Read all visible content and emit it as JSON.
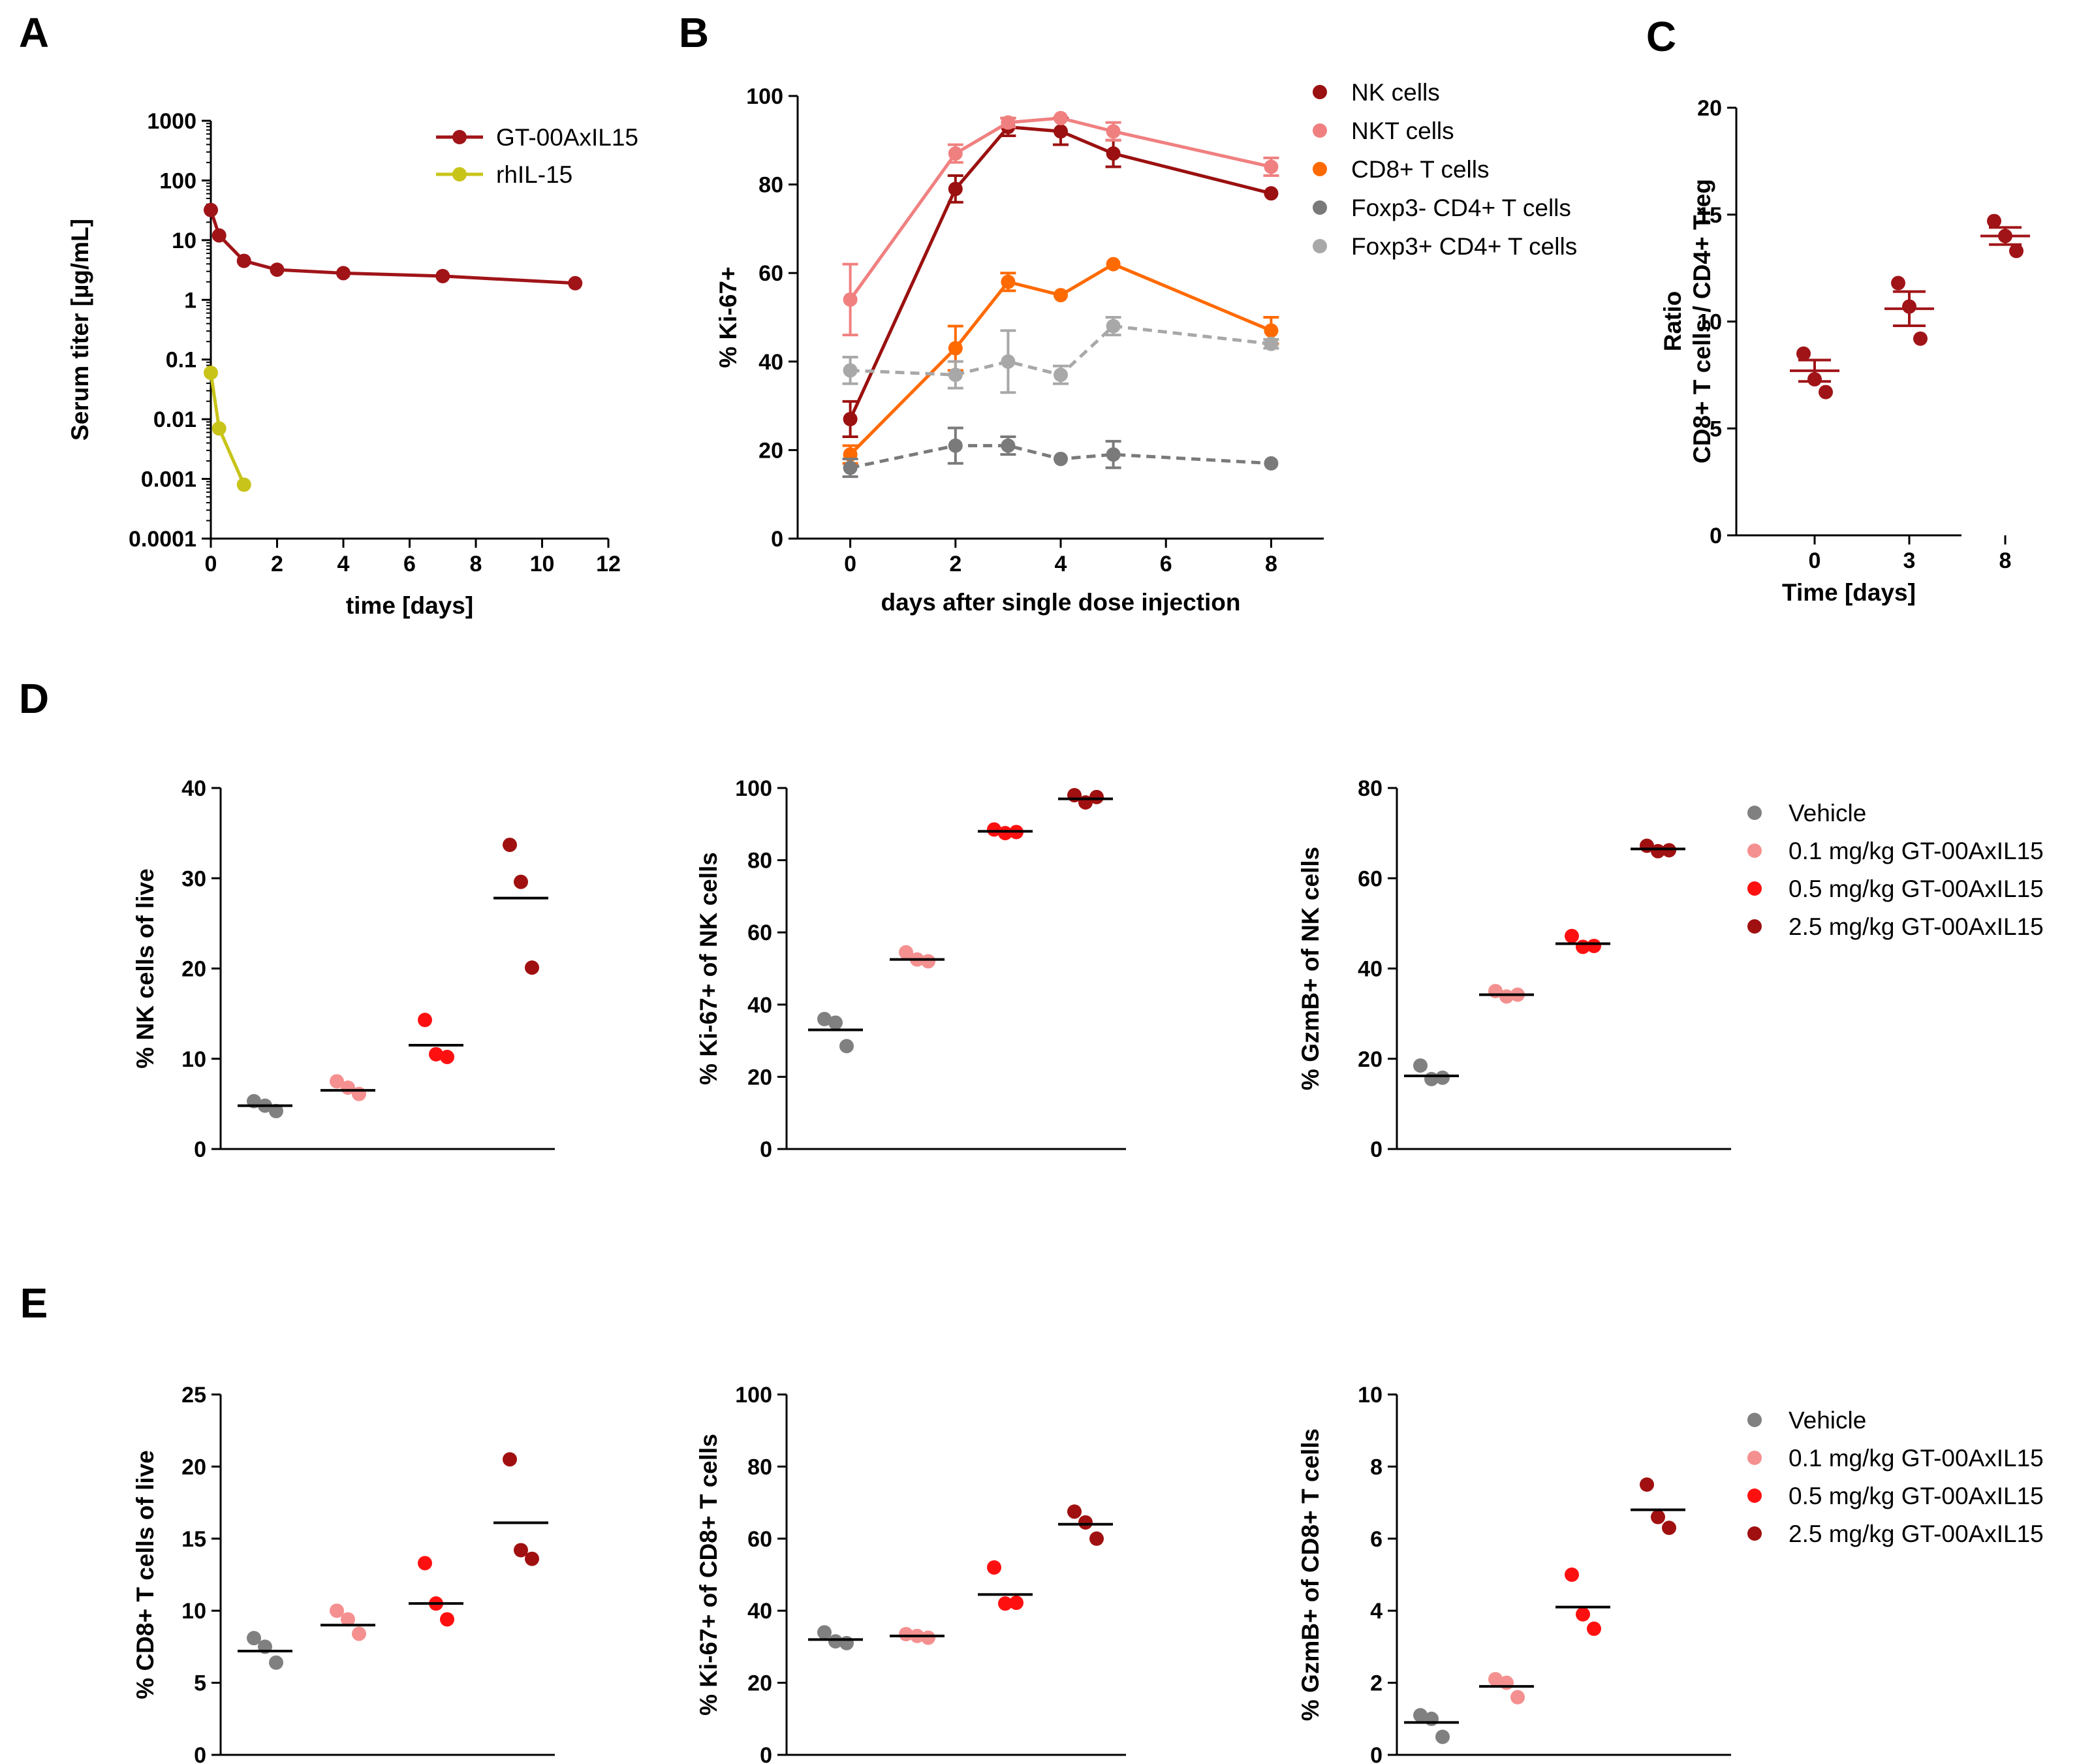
{
  "colors": {
    "nk": "#9b1010",
    "nkt": "#f08080",
    "cd8": "#ff6a00",
    "foxp3neg": "#7a7a7a",
    "foxp3pos": "#a8a8a8",
    "gt": "#a01418",
    "rhil15": "#c8c41a",
    "vehicle": "#808080",
    "dose01": "#f59090",
    "dose05": "#ff1010",
    "dose25": "#a01010"
  },
  "chart_data": [
    {
      "panel": "A",
      "type": "line",
      "yscale": "log",
      "xlabel": "time [days]",
      "ylabel": "Serum titer [µg/mL]",
      "xlim": [
        0,
        12
      ],
      "ylim": [
        0.0001,
        1000
      ],
      "xticks": [
        "0",
        "2",
        "4",
        "6",
        "8",
        "10",
        "12"
      ],
      "yticks": [
        "0.0001",
        "0.001",
        "0.01",
        "0.1",
        "1",
        "10",
        "100",
        "1000"
      ],
      "series": [
        {
          "name": "GT-00AxIL15",
          "color": "gt",
          "x": [
            0,
            0.25,
            1,
            2,
            4,
            7,
            11
          ],
          "y": [
            32,
            12,
            4.5,
            3.2,
            2.8,
            2.5,
            1.9
          ]
        },
        {
          "name": "rhIL-15",
          "color": "rhil15",
          "x": [
            0,
            0.25,
            1
          ],
          "y": [
            0.06,
            0.007,
            0.0008
          ]
        }
      ]
    },
    {
      "panel": "B",
      "type": "line",
      "xlabel": "days after single dose injection",
      "ylabel": "% Ki-67+",
      "xlim": [
        -1,
        9
      ],
      "ylim": [
        0,
        100
      ],
      "xticks": [
        "0",
        "2",
        "4",
        "6",
        "8"
      ],
      "yticks": [
        "0",
        "20",
        "40",
        "60",
        "80",
        "100"
      ],
      "x": [
        0,
        2,
        3,
        4,
        5,
        8
      ],
      "series": [
        {
          "name": "NK cells",
          "color": "nk",
          "dashed": false,
          "y": [
            27,
            79,
            93,
            92,
            87,
            78
          ],
          "err": [
            4,
            3,
            2,
            3,
            3,
            0
          ]
        },
        {
          "name": "NKT cells",
          "color": "nkt",
          "dashed": false,
          "y": [
            54,
            87,
            94,
            95,
            92,
            84
          ],
          "err": [
            8,
            2,
            1,
            0,
            2,
            2
          ]
        },
        {
          "name": "CD8+ T cells",
          "color": "cd8",
          "dashed": false,
          "y": [
            19,
            43,
            58,
            55,
            62,
            47
          ],
          "err": [
            2,
            5,
            2,
            0,
            0,
            3
          ]
        },
        {
          "name": "Foxp3- CD4+ T cells",
          "color": "foxp3neg",
          "dashed": true,
          "y": [
            16,
            21,
            21,
            18,
            19,
            17
          ],
          "err": [
            2,
            4,
            2,
            0,
            3,
            0
          ]
        },
        {
          "name": "Foxp3+ CD4+ T cells",
          "color": "foxp3pos",
          "dashed": true,
          "y": [
            38,
            37,
            40,
            37,
            48,
            44
          ],
          "err": [
            3,
            3,
            7,
            2,
            2,
            1
          ]
        }
      ]
    },
    {
      "panel": "C",
      "type": "scatter",
      "xlabel": "Time [days]",
      "ylabel": [
        "Ratio",
        "CD8+ T cells / CD4+ Treg"
      ],
      "ylim": [
        0,
        20
      ],
      "categories": [
        "0",
        "3",
        "8"
      ],
      "yticks": [
        "0",
        "5",
        "10",
        "15",
        "20"
      ],
      "points": [
        [
          8.5,
          7.3,
          6.7
        ],
        [
          11.8,
          10.7,
          9.2
        ],
        [
          14.7,
          14.0,
          13.3
        ]
      ],
      "means": [
        7.7,
        10.6,
        14.0
      ],
      "sem": [
        0.5,
        0.8,
        0.4
      ],
      "color": "gt"
    },
    {
      "panel": "D1",
      "type": "scatter",
      "ylabel": "% NK cells of live",
      "ylim": [
        0,
        40
      ],
      "yticks": [
        "0",
        "10",
        "20",
        "30",
        "40"
      ],
      "groups": [
        "Vehicle",
        "0.1 mg/kg GT-00AxIL15",
        "0.5 mg/kg GT-00AxIL15",
        "2.5 mg/kg GT-00AxIL15"
      ],
      "points": [
        [
          5.3,
          4.8,
          4.2
        ],
        [
          7.5,
          6.8,
          6.1
        ],
        [
          14.3,
          10.5,
          10.2
        ],
        [
          33.7,
          29.6,
          20.1
        ]
      ],
      "means": [
        4.8,
        6.5,
        11.5,
        27.8
      ]
    },
    {
      "panel": "D2",
      "type": "scatter",
      "ylabel": "% Ki-67+ of NK cells",
      "ylim": [
        0,
        100
      ],
      "yticks": [
        "0",
        "20",
        "40",
        "60",
        "80",
        "100"
      ],
      "groups": [
        "Vehicle",
        "0.1 mg/kg GT-00AxIL15",
        "0.5 mg/kg GT-00AxIL15",
        "2.5 mg/kg GT-00AxIL15"
      ],
      "points": [
        [
          36,
          35,
          28.5
        ],
        [
          54.5,
          52.5,
          52
        ],
        [
          88.5,
          87.5,
          87.8
        ],
        [
          98,
          96,
          97.5
        ]
      ],
      "means": [
        33,
        52.5,
        88,
        97
      ]
    },
    {
      "panel": "D3",
      "type": "scatter",
      "ylabel": "% GzmB+ of NK cells",
      "ylim": [
        0,
        80
      ],
      "yticks": [
        "0",
        "20",
        "40",
        "60",
        "80"
      ],
      "groups": [
        "Vehicle",
        "0.1 mg/kg GT-00AxIL15",
        "0.5 mg/kg GT-00AxIL15",
        "2.5 mg/kg GT-00AxIL15"
      ],
      "points": [
        [
          18.5,
          15.5,
          15.8
        ],
        [
          35,
          33.8,
          34.2
        ],
        [
          47.2,
          44.8,
          45
        ],
        [
          67.2,
          66,
          66.2
        ]
      ],
      "means": [
        16.2,
        34.2,
        45.5,
        66.5
      ]
    },
    {
      "panel": "E1",
      "type": "scatter",
      "ylabel": "% CD8+ T cells of live",
      "ylim": [
        0,
        25
      ],
      "yticks": [
        "0",
        "5",
        "10",
        "15",
        "20",
        "25"
      ],
      "groups": [
        "Vehicle",
        "0.1 mg/kg GT-00AxIL15",
        "0.5 mg/kg GT-00AxIL15",
        "2.5 mg/kg GT-00AxIL15"
      ],
      "points": [
        [
          8.1,
          7.5,
          6.4
        ],
        [
          10,
          9.4,
          8.4
        ],
        [
          13.3,
          10.5,
          9.4
        ],
        [
          20.5,
          14.2,
          13.6
        ]
      ],
      "means": [
        7.2,
        9.0,
        10.5,
        16.1
      ]
    },
    {
      "panel": "E2",
      "type": "scatter",
      "ylabel": "% Ki-67+ of CD8+ T cells",
      "ylim": [
        0,
        100
      ],
      "yticks": [
        "0",
        "20",
        "40",
        "60",
        "80",
        "100"
      ],
      "groups": [
        "Vehicle",
        "0.1 mg/kg GT-00AxIL15",
        "0.5 mg/kg GT-00AxIL15",
        "2.5 mg/kg GT-00AxIL15"
      ],
      "points": [
        [
          34,
          31.5,
          31
        ],
        [
          33.5,
          33,
          32.5
        ],
        [
          52,
          42,
          42.2
        ],
        [
          67.5,
          64.5,
          60
        ]
      ],
      "means": [
        32,
        33,
        44.5,
        64
      ]
    },
    {
      "panel": "E3",
      "type": "scatter",
      "ylabel": "% GzmB+ of CD8+ T cells",
      "ylim": [
        0,
        10
      ],
      "yticks": [
        "0",
        "2",
        "4",
        "6",
        "8",
        "10"
      ],
      "groups": [
        "Vehicle",
        "0.1 mg/kg GT-00AxIL15",
        "0.5 mg/kg GT-00AxIL15",
        "2.5 mg/kg GT-00AxIL15"
      ],
      "points": [
        [
          1.1,
          1.0,
          0.5
        ],
        [
          2.1,
          2.0,
          1.6
        ],
        [
          5.0,
          3.9,
          3.5
        ],
        [
          7.5,
          6.6,
          6.3
        ]
      ],
      "means": [
        0.9,
        1.9,
        4.1,
        6.8
      ]
    }
  ],
  "panel_labels": [
    "A",
    "B",
    "C",
    "D",
    "E"
  ],
  "legends": {
    "A": [
      "GT-00AxIL15",
      "rhIL-15"
    ],
    "B": [
      "NK cells",
      "NKT cells",
      "CD8+ T cells",
      "Foxp3- CD4+ T cells",
      "Foxp3+ CD4+ T cells"
    ],
    "D": [
      "Vehicle",
      "0.1 mg/kg GT-00AxIL15",
      "0.5 mg/kg GT-00AxIL15",
      "2.5 mg/kg GT-00AxIL15"
    ],
    "E": [
      "Vehicle",
      "0.1 mg/kg GT-00AxIL15",
      "0.5 mg/kg GT-00AxIL15",
      "2.5 mg/kg GT-00AxIL15"
    ]
  }
}
